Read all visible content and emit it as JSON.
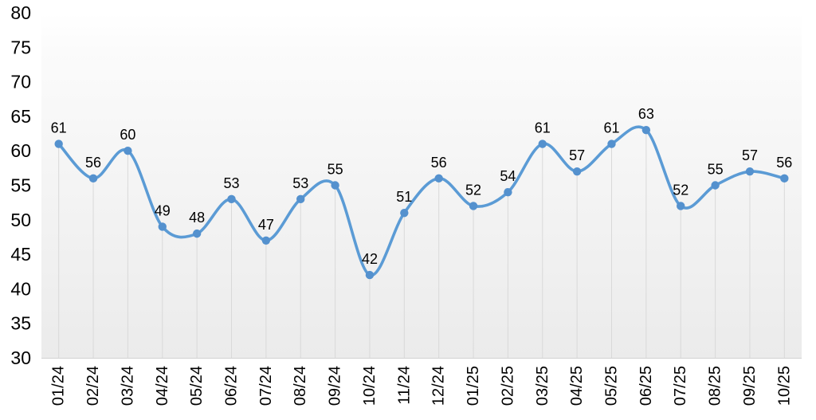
{
  "chart_data": {
    "type": "line",
    "smooth": true,
    "title": "",
    "xlabel": "",
    "ylabel": "",
    "legend": "none",
    "grid": "drop-lines-only",
    "categories": [
      "01/24",
      "02/24",
      "03/24",
      "04/24",
      "05/24",
      "06/24",
      "07/24",
      "08/24",
      "09/24",
      "10/24",
      "11/24",
      "12/24",
      "01/25",
      "02/25",
      "03/25",
      "04/25",
      "05/25",
      "06/25",
      "07/25",
      "08/25",
      "09/25",
      "10/25"
    ],
    "values": [
      61,
      56,
      60,
      49,
      48,
      53,
      47,
      53,
      55,
      42,
      51,
      56,
      52,
      54,
      61,
      57,
      61,
      63,
      52,
      55,
      57,
      56
    ],
    "data_labels_shown": true,
    "ylim": [
      30,
      80
    ],
    "ytick_step": 5,
    "yticks": [
      80,
      75,
      70,
      65,
      60,
      55,
      50,
      45,
      40,
      35,
      30
    ],
    "colors": {
      "line": "#5B9BD5",
      "marker": "#5491CE",
      "data_label_text": "#000000",
      "axis_text": "#000000",
      "drop_line": "#d9d9d9",
      "axis_line": "#d2d2d2",
      "plot_bg_top": "#ffffff",
      "plot_bg_mid": "#fbfbfb",
      "plot_bg_bottom": "#ebebeb"
    }
  }
}
